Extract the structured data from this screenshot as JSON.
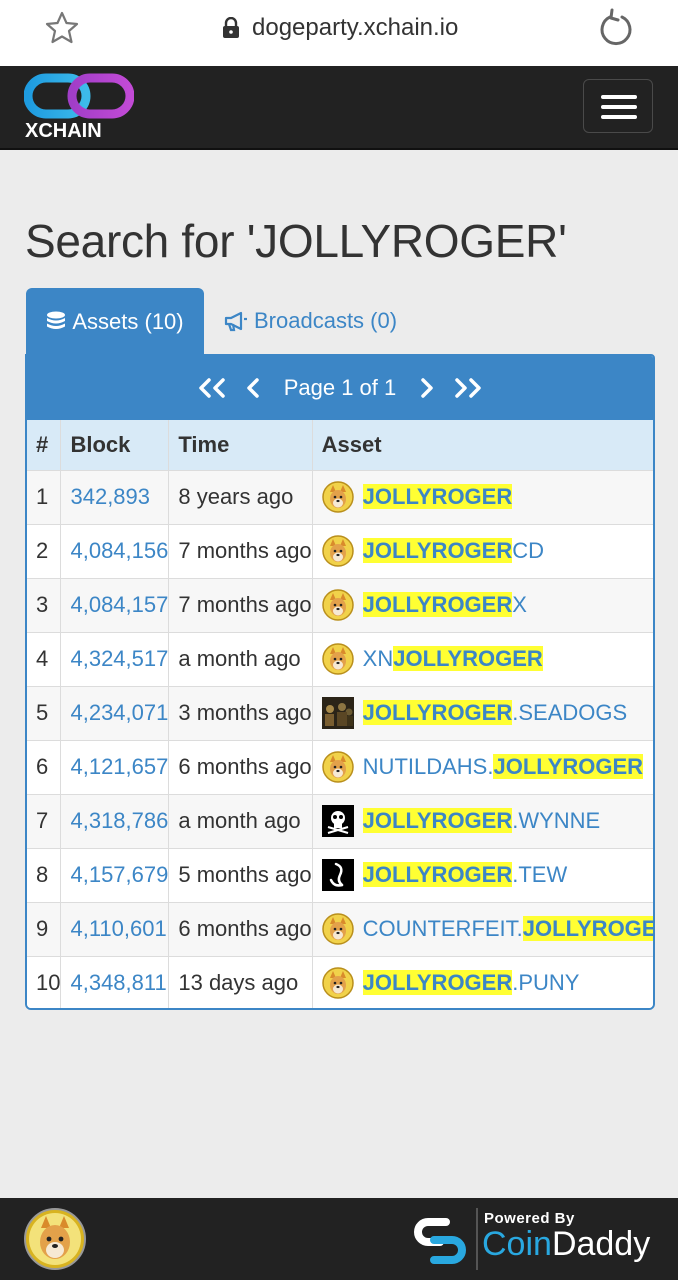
{
  "browser": {
    "url": "dogeparty.xchain.io"
  },
  "navbar": {
    "logo_text": "XCHAIN"
  },
  "page": {
    "title": "Search for 'JOLLYROGER'"
  },
  "tabs": [
    {
      "label": "Assets (10)",
      "icon": "database-icon",
      "active": true
    },
    {
      "label": "Broadcasts (0)",
      "icon": "bullhorn-icon",
      "active": false
    }
  ],
  "pager": {
    "label": "Page 1 of 1"
  },
  "table": {
    "columns": [
      "#",
      "Block",
      "Time",
      "Asset"
    ],
    "rows": [
      {
        "num": "1",
        "block": "342,893",
        "time": "8 years ago",
        "asset_pre": "",
        "asset_hl": "JOLLYROGER",
        "asset_post": "",
        "icon": "shiba-icon"
      },
      {
        "num": "2",
        "block": "4,084,156",
        "time": "7 months ago",
        "asset_pre": "",
        "asset_hl": "JOLLYROGER",
        "asset_post": "CD",
        "icon": "shiba-icon"
      },
      {
        "num": "3",
        "block": "4,084,157",
        "time": "7 months ago",
        "asset_pre": "",
        "asset_hl": "JOLLYROGER",
        "asset_post": "X",
        "icon": "shiba-icon"
      },
      {
        "num": "4",
        "block": "4,324,517",
        "time": "a month ago",
        "asset_pre": "XN",
        "asset_hl": "JOLLYROGER",
        "asset_post": "",
        "icon": "shiba-icon"
      },
      {
        "num": "5",
        "block": "4,234,071",
        "time": "3 months ago",
        "asset_pre": "",
        "asset_hl": "JOLLYROGER",
        "asset_post": ".SEADOGS",
        "icon": "pirates-icon"
      },
      {
        "num": "6",
        "block": "4,121,657",
        "time": "6 months ago",
        "asset_pre": "NUTILDAHS.",
        "asset_hl": "JOLLYROGER",
        "asset_post": "",
        "icon": "shiba-icon"
      },
      {
        "num": "7",
        "block": "4,318,786",
        "time": "a month ago",
        "asset_pre": "",
        "asset_hl": "JOLLYROGER",
        "asset_post": ".WYNNE",
        "icon": "skull-icon"
      },
      {
        "num": "8",
        "block": "4,157,679",
        "time": "5 months ago",
        "asset_pre": "",
        "asset_hl": "JOLLYROGER",
        "asset_post": ".TEW",
        "icon": "hook-icon"
      },
      {
        "num": "9",
        "block": "4,110,601",
        "time": "6 months ago",
        "asset_pre": "COUNTERFEIT.",
        "asset_hl": "JOLLYROGER",
        "asset_post": "",
        "icon": "shiba-icon"
      },
      {
        "num": "10",
        "block": "4,348,811",
        "time": "13 days ago",
        "asset_pre": "",
        "asset_hl": "JOLLYROGER",
        "asset_post": ".PUNY",
        "icon": "shiba-icon"
      }
    ]
  },
  "footer": {
    "powered_by": "Powered By",
    "brand_coin": "Coin",
    "brand_daddy": "Daddy"
  },
  "colors": {
    "accent": "#3c86c6",
    "highlight": "#ffff33",
    "navbar": "#222222"
  }
}
